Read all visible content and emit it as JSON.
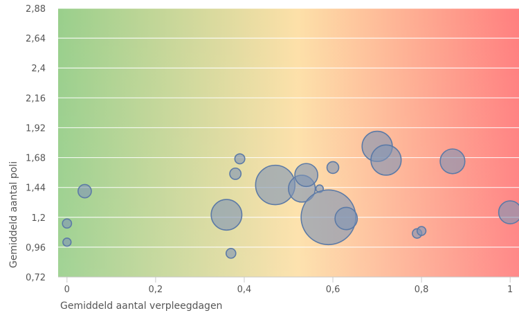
{
  "chart_data": {
    "type": "scatter",
    "xlabel": "Gemiddeld aantal verpleegdagen",
    "ylabel": "Gemiddeld aantal poli",
    "xlim": [
      -0.02,
      1.02
    ],
    "ylim": [
      0.72,
      2.88
    ],
    "x_ticks": [
      0,
      0.2,
      0.4,
      0.6,
      0.8,
      1
    ],
    "x_tick_labels": [
      "0",
      "0,2",
      "0,4",
      "0,6",
      "0,8",
      "1"
    ],
    "y_ticks": [
      0.72,
      0.96,
      1.2,
      1.44,
      1.68,
      1.92,
      2.16,
      2.4,
      2.64,
      2.88
    ],
    "y_tick_labels": [
      "0,72",
      "0,96",
      "1,2",
      "1,44",
      "1,68",
      "1,92",
      "2,16",
      "2,4",
      "2,64",
      "2,88"
    ],
    "grid": true,
    "legend": "none",
    "colors": {
      "bubble_fill": "#7f95b5",
      "bubble_stroke": "#5c7aa6",
      "gradient_green": "#99cf8c",
      "gradient_yellow": "#fde0a8",
      "gradient_red": "#ff7f7f"
    },
    "points": [
      {
        "x": 0.0,
        "y": 1.15,
        "size": 0.15
      },
      {
        "x": 0.0,
        "y": 1.0,
        "size": 0.12
      },
      {
        "x": 0.04,
        "y": 1.41,
        "size": 0.32
      },
      {
        "x": 0.36,
        "y": 1.22,
        "size": 1.7
      },
      {
        "x": 0.37,
        "y": 0.91,
        "size": 0.17
      },
      {
        "x": 0.38,
        "y": 1.55,
        "size": 0.23
      },
      {
        "x": 0.39,
        "y": 1.67,
        "size": 0.18
      },
      {
        "x": 0.47,
        "y": 1.46,
        "size": 2.8
      },
      {
        "x": 0.53,
        "y": 1.43,
        "size": 1.3
      },
      {
        "x": 0.54,
        "y": 1.54,
        "size": 0.95
      },
      {
        "x": 0.57,
        "y": 1.43,
        "size": 0.1
      },
      {
        "x": 0.59,
        "y": 1.2,
        "size": 5.4
      },
      {
        "x": 0.6,
        "y": 1.6,
        "size": 0.25
      },
      {
        "x": 0.63,
        "y": 1.19,
        "size": 0.9
      },
      {
        "x": 0.7,
        "y": 1.77,
        "size": 1.65
      },
      {
        "x": 0.72,
        "y": 1.66,
        "size": 1.65
      },
      {
        "x": 0.79,
        "y": 1.07,
        "size": 0.16
      },
      {
        "x": 0.8,
        "y": 1.09,
        "size": 0.14
      },
      {
        "x": 0.87,
        "y": 1.65,
        "size": 1.1
      },
      {
        "x": 1.0,
        "y": 1.24,
        "size": 0.95
      }
    ]
  }
}
